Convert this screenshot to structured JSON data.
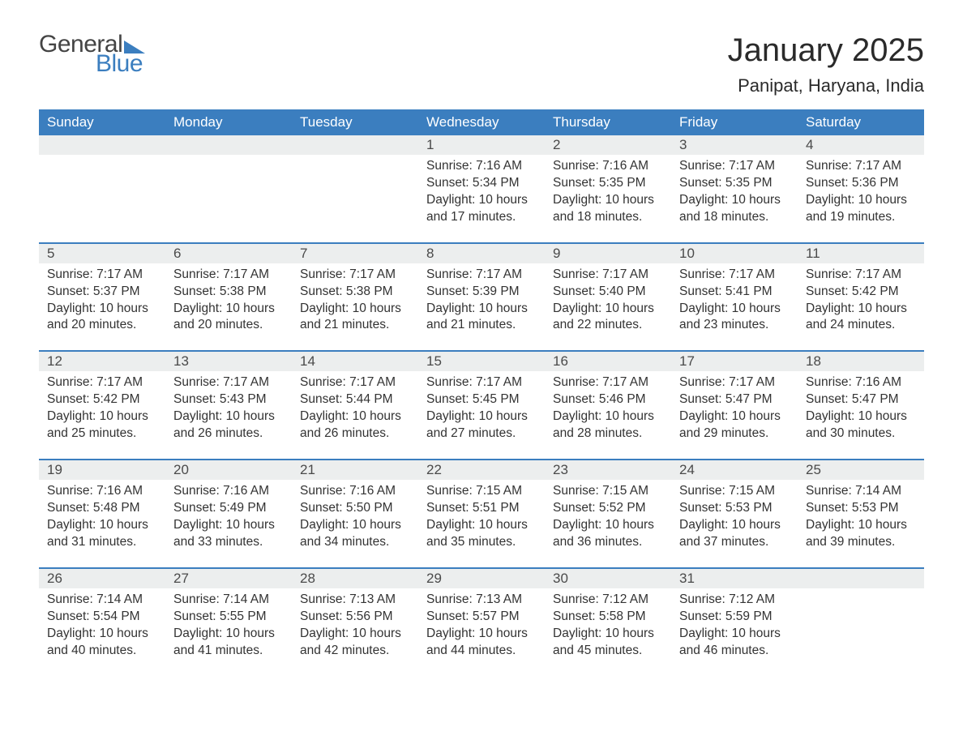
{
  "logo": {
    "word1": "General",
    "word2": "Blue"
  },
  "title": "January 2025",
  "location": "Panipat, Haryana, India",
  "colors": {
    "header_bg": "#3b7ebf",
    "header_text": "#ffffff",
    "daynum_bg": "#eceeee",
    "border": "#3b7ebf",
    "body_text": "#333333",
    "logo_gray": "#444444",
    "logo_blue": "#3b7ebf",
    "page_bg": "#ffffff"
  },
  "typography": {
    "title_fontsize": 40,
    "location_fontsize": 22,
    "weekday_fontsize": 17,
    "daynum_fontsize": 17,
    "body_fontsize": 15.5
  },
  "weekdays": [
    "Sunday",
    "Monday",
    "Tuesday",
    "Wednesday",
    "Thursday",
    "Friday",
    "Saturday"
  ],
  "weeks": [
    [
      null,
      null,
      null,
      {
        "n": "1",
        "sunrise": "7:16 AM",
        "sunset": "5:34 PM",
        "daylight": "10 hours and 17 minutes."
      },
      {
        "n": "2",
        "sunrise": "7:16 AM",
        "sunset": "5:35 PM",
        "daylight": "10 hours and 18 minutes."
      },
      {
        "n": "3",
        "sunrise": "7:17 AM",
        "sunset": "5:35 PM",
        "daylight": "10 hours and 18 minutes."
      },
      {
        "n": "4",
        "sunrise": "7:17 AM",
        "sunset": "5:36 PM",
        "daylight": "10 hours and 19 minutes."
      }
    ],
    [
      {
        "n": "5",
        "sunrise": "7:17 AM",
        "sunset": "5:37 PM",
        "daylight": "10 hours and 20 minutes."
      },
      {
        "n": "6",
        "sunrise": "7:17 AM",
        "sunset": "5:38 PM",
        "daylight": "10 hours and 20 minutes."
      },
      {
        "n": "7",
        "sunrise": "7:17 AM",
        "sunset": "5:38 PM",
        "daylight": "10 hours and 21 minutes."
      },
      {
        "n": "8",
        "sunrise": "7:17 AM",
        "sunset": "5:39 PM",
        "daylight": "10 hours and 21 minutes."
      },
      {
        "n": "9",
        "sunrise": "7:17 AM",
        "sunset": "5:40 PM",
        "daylight": "10 hours and 22 minutes."
      },
      {
        "n": "10",
        "sunrise": "7:17 AM",
        "sunset": "5:41 PM",
        "daylight": "10 hours and 23 minutes."
      },
      {
        "n": "11",
        "sunrise": "7:17 AM",
        "sunset": "5:42 PM",
        "daylight": "10 hours and 24 minutes."
      }
    ],
    [
      {
        "n": "12",
        "sunrise": "7:17 AM",
        "sunset": "5:42 PM",
        "daylight": "10 hours and 25 minutes."
      },
      {
        "n": "13",
        "sunrise": "7:17 AM",
        "sunset": "5:43 PM",
        "daylight": "10 hours and 26 minutes."
      },
      {
        "n": "14",
        "sunrise": "7:17 AM",
        "sunset": "5:44 PM",
        "daylight": "10 hours and 26 minutes."
      },
      {
        "n": "15",
        "sunrise": "7:17 AM",
        "sunset": "5:45 PM",
        "daylight": "10 hours and 27 minutes."
      },
      {
        "n": "16",
        "sunrise": "7:17 AM",
        "sunset": "5:46 PM",
        "daylight": "10 hours and 28 minutes."
      },
      {
        "n": "17",
        "sunrise": "7:17 AM",
        "sunset": "5:47 PM",
        "daylight": "10 hours and 29 minutes."
      },
      {
        "n": "18",
        "sunrise": "7:16 AM",
        "sunset": "5:47 PM",
        "daylight": "10 hours and 30 minutes."
      }
    ],
    [
      {
        "n": "19",
        "sunrise": "7:16 AM",
        "sunset": "5:48 PM",
        "daylight": "10 hours and 31 minutes."
      },
      {
        "n": "20",
        "sunrise": "7:16 AM",
        "sunset": "5:49 PM",
        "daylight": "10 hours and 33 minutes."
      },
      {
        "n": "21",
        "sunrise": "7:16 AM",
        "sunset": "5:50 PM",
        "daylight": "10 hours and 34 minutes."
      },
      {
        "n": "22",
        "sunrise": "7:15 AM",
        "sunset": "5:51 PM",
        "daylight": "10 hours and 35 minutes."
      },
      {
        "n": "23",
        "sunrise": "7:15 AM",
        "sunset": "5:52 PM",
        "daylight": "10 hours and 36 minutes."
      },
      {
        "n": "24",
        "sunrise": "7:15 AM",
        "sunset": "5:53 PM",
        "daylight": "10 hours and 37 minutes."
      },
      {
        "n": "25",
        "sunrise": "7:14 AM",
        "sunset": "5:53 PM",
        "daylight": "10 hours and 39 minutes."
      }
    ],
    [
      {
        "n": "26",
        "sunrise": "7:14 AM",
        "sunset": "5:54 PM",
        "daylight": "10 hours and 40 minutes."
      },
      {
        "n": "27",
        "sunrise": "7:14 AM",
        "sunset": "5:55 PM",
        "daylight": "10 hours and 41 minutes."
      },
      {
        "n": "28",
        "sunrise": "7:13 AM",
        "sunset": "5:56 PM",
        "daylight": "10 hours and 42 minutes."
      },
      {
        "n": "29",
        "sunrise": "7:13 AM",
        "sunset": "5:57 PM",
        "daylight": "10 hours and 44 minutes."
      },
      {
        "n": "30",
        "sunrise": "7:12 AM",
        "sunset": "5:58 PM",
        "daylight": "10 hours and 45 minutes."
      },
      {
        "n": "31",
        "sunrise": "7:12 AM",
        "sunset": "5:59 PM",
        "daylight": "10 hours and 46 minutes."
      },
      null
    ]
  ],
  "labels": {
    "sunrise": "Sunrise: ",
    "sunset": "Sunset: ",
    "daylight": "Daylight: "
  }
}
